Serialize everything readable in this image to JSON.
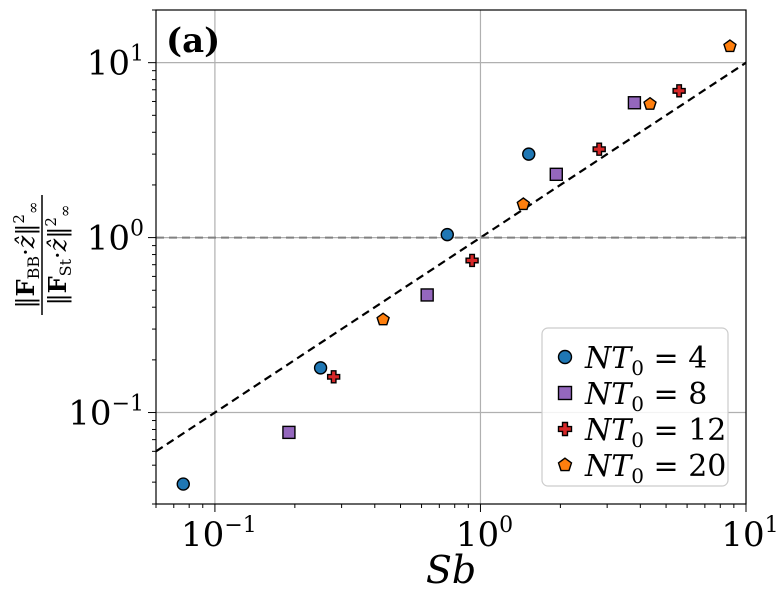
{
  "chart_data": {
    "type": "scatter",
    "panel_label": "(a)",
    "xlabel": "Sb",
    "ylabel": {
      "numerator": "‖F_BB·ẑ‖²∞",
      "denominator": "‖F_St·ẑ‖²∞"
    },
    "xscale": "log",
    "yscale": "log",
    "xlim": [
      0.06,
      10
    ],
    "ylim": [
      0.03,
      20
    ],
    "grid": true,
    "legend_position": "lower-right",
    "x_ticks": [
      {
        "value": 0.1,
        "label": "10^-1"
      },
      {
        "value": 1,
        "label": "10^0"
      },
      {
        "value": 10,
        "label": "10^1"
      }
    ],
    "y_ticks": [
      {
        "value": 0.1,
        "label": "10^-1"
      },
      {
        "value": 1,
        "label": "10^0"
      },
      {
        "value": 10,
        "label": "10^1"
      }
    ],
    "reference_lines": [
      {
        "kind": "identity",
        "description": "y = x",
        "style": "dashed",
        "color": "#000000"
      },
      {
        "kind": "horizontal",
        "y": 1,
        "style": "dashed",
        "color": "#808080"
      }
    ],
    "series": [
      {
        "name": "NT_0 = 4",
        "marker": "circle",
        "color": "#1f77b4",
        "points": [
          [
            0.076,
            0.039
          ],
          [
            0.25,
            0.18
          ],
          [
            0.75,
            1.04
          ],
          [
            1.52,
            3.0
          ]
        ]
      },
      {
        "name": "NT_0 = 8",
        "marker": "square",
        "color": "#9467bd",
        "points": [
          [
            0.19,
            0.077
          ],
          [
            0.63,
            0.47
          ],
          [
            1.93,
            2.3
          ],
          [
            3.8,
            5.9
          ]
        ]
      },
      {
        "name": "NT_0 = 12",
        "marker": "plus",
        "color": "#d62728",
        "points": [
          [
            0.28,
            0.16
          ],
          [
            0.93,
            0.74
          ],
          [
            2.8,
            3.2
          ],
          [
            5.6,
            6.9
          ]
        ]
      },
      {
        "name": "NT_0 = 20",
        "marker": "pentagon",
        "color": "#ff7f0e",
        "points": [
          [
            0.43,
            0.34
          ],
          [
            1.45,
            1.55
          ],
          [
            4.35,
            5.8
          ],
          [
            8.7,
            12.4
          ]
        ]
      }
    ],
    "legend": [
      {
        "label_main": "NT",
        "label_sub": "0",
        "label_rest": " = 4"
      },
      {
        "label_main": "NT",
        "label_sub": "0",
        "label_rest": " = 8"
      },
      {
        "label_main": "NT",
        "label_sub": "0",
        "label_rest": " = 12"
      },
      {
        "label_main": "NT",
        "label_sub": "0",
        "label_rest": " = 20"
      }
    ]
  }
}
